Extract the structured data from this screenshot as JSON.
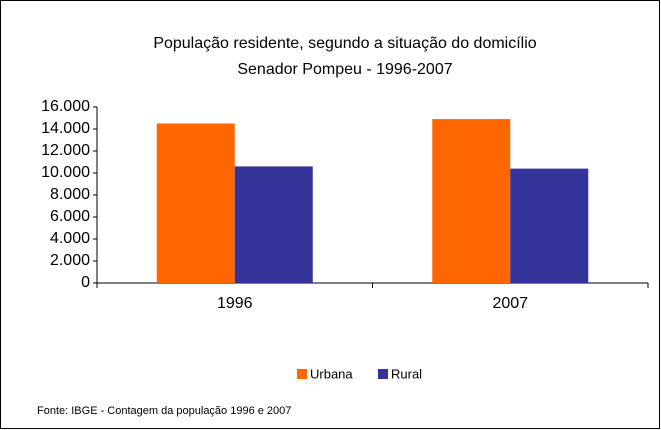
{
  "chart_data": {
    "type": "bar",
    "title": "População residente, segundo a situação do domicílio",
    "subtitle": "Senador  Pompeu  - 1996-2007",
    "categories": [
      "1996",
      "2007"
    ],
    "series": [
      {
        "name": "Urbana",
        "color": "#ff6600",
        "values": [
          14500,
          14900
        ]
      },
      {
        "name": "Rural",
        "color": "#333399",
        "values": [
          10600,
          10400
        ]
      }
    ],
    "ylim": [
      0,
      16000
    ],
    "yticks": [
      {
        "value": 0,
        "label": "0"
      },
      {
        "value": 2000,
        "label": "2.000"
      },
      {
        "value": 4000,
        "label": "4.000"
      },
      {
        "value": 6000,
        "label": "6.000"
      },
      {
        "value": 8000,
        "label": "8.000"
      },
      {
        "value": 10000,
        "label": "10.000"
      },
      {
        "value": 12000,
        "label": "12.000"
      },
      {
        "value": 14000,
        "label": "14.000"
      },
      {
        "value": 16000,
        "label": "16.000"
      }
    ],
    "grid": false,
    "legend": "bottom",
    "source": "Fonte: IBGE - Contagem da população 1996 e 2007"
  }
}
